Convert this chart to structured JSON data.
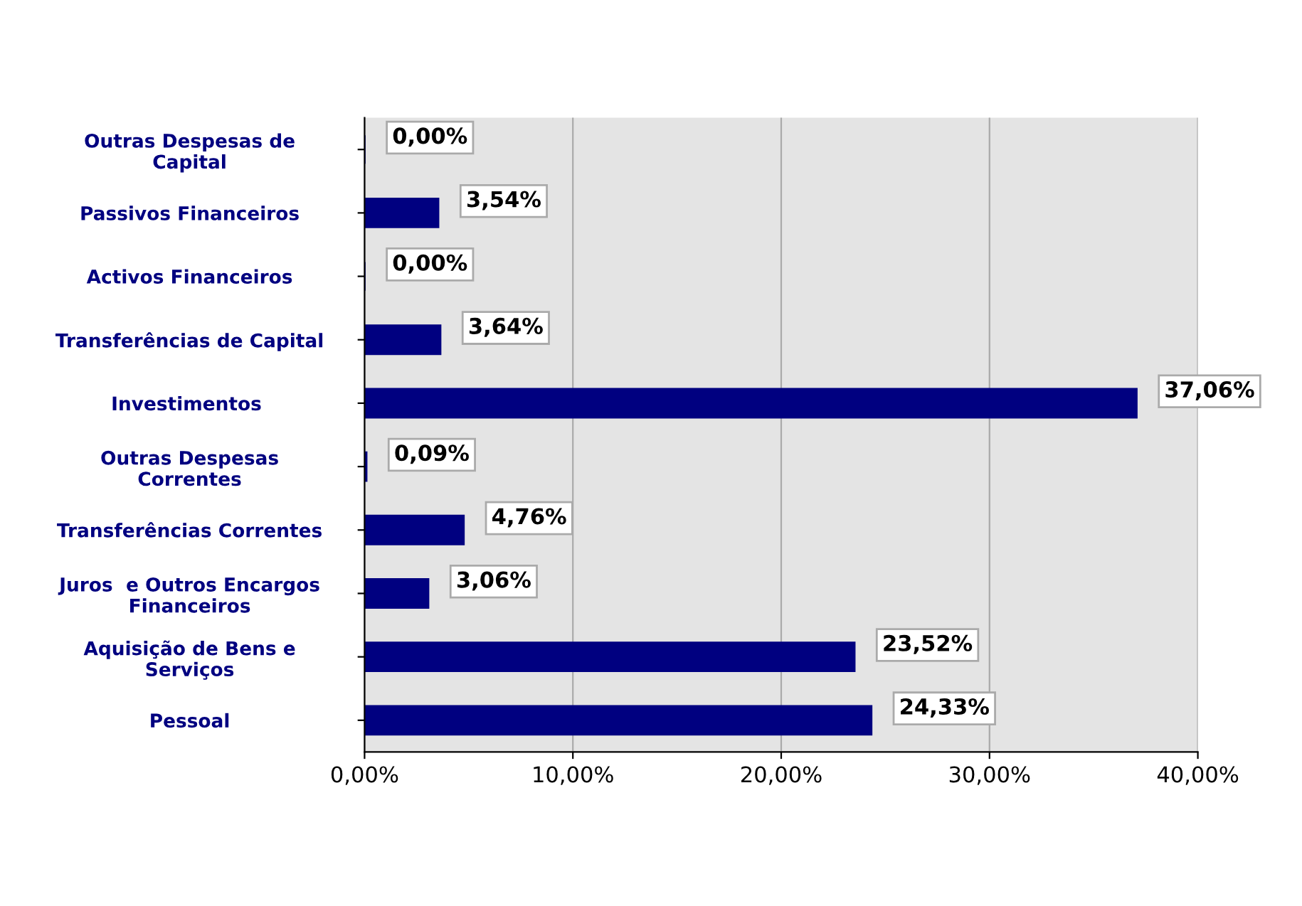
{
  "chart_data": {
    "type": "bar",
    "orientation": "horizontal",
    "categories": [
      "Outras Despesas de\nCapital",
      "Passivos Financeiros",
      "Activos Financeiros",
      "Transferências de Capital",
      "Investimentos ",
      "Outras Despesas\nCorrentes",
      "Transferências Correntes",
      "Juros  e Outros Encargos\nFinanceiros",
      "Aquisição de Bens e\nServiços",
      "Pessoal"
    ],
    "values": [
      0.0,
      3.54,
      0.0,
      3.64,
      37.06,
      0.09,
      4.76,
      3.06,
      23.52,
      24.33
    ],
    "value_labels": [
      "0,00%",
      "3,54%",
      "0,00%",
      "3,64%",
      "37,06%",
      "0,09%",
      "4,76%",
      "3,06%",
      "23,52%",
      "24,33%"
    ],
    "color": "#000080",
    "xlim": [
      0,
      40
    ],
    "xticks": [
      {
        "value": 0,
        "label": "0,00%"
      },
      {
        "value": 10,
        "label": "10,00%"
      },
      {
        "value": 20,
        "label": "20,00%"
      },
      {
        "value": 30,
        "label": "30,00%"
      },
      {
        "value": 40,
        "label": "40,00%"
      }
    ],
    "grid": "x",
    "legend": false
  }
}
